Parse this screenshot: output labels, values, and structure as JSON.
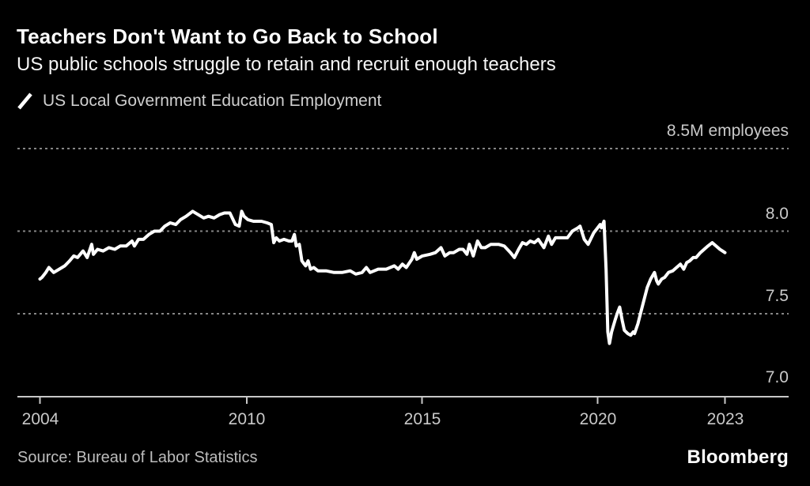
{
  "header": {
    "title": "Teachers Don't Want to Go Back to School",
    "subtitle": "US public schools struggle to retain and recruit enough teachers"
  },
  "legend": {
    "label": "US Local Government Education Employment"
  },
  "footer": {
    "source": "Source: Bureau of Labor Statistics",
    "brand": "Bloomberg"
  },
  "colors": {
    "background": "#000000",
    "line": "#ffffff",
    "grid": "#868686",
    "axis": "#c8c8c8",
    "label": "#c9c9c9"
  },
  "chart_data": {
    "type": "line",
    "title": "Teachers Don't Want to Go Back to School",
    "subtitle": "US public schools struggle to retain and recruit enough teachers",
    "series_name": "US Local Government Education Employment",
    "ylabel": "employees (millions)",
    "grid": "dashed horizontal",
    "legend_position": "top-left",
    "y_axis": {
      "range": [
        7.0,
        8.5
      ],
      "gridlines_at": [
        8.5,
        8.0,
        7.5
      ],
      "ticks": [
        {
          "value": 8.5,
          "label": "8.5M employees"
        },
        {
          "value": 8.0,
          "label": "8.0"
        },
        {
          "value": 7.5,
          "label": "7.5"
        },
        {
          "value": 7.0,
          "label": "7.0"
        }
      ]
    },
    "x_axis": {
      "range": [
        2004,
        2023
      ],
      "ticks": [
        {
          "year": 2004,
          "label": "2004"
        },
        {
          "year": 2010,
          "label": "2010"
        },
        {
          "year": 2015,
          "label": "2015"
        },
        {
          "year": 2020,
          "label": "2020"
        },
        {
          "year": 2023,
          "label": "2023"
        }
      ]
    },
    "points": [
      [
        2004.0,
        7.71
      ],
      [
        2004.06,
        7.72
      ],
      [
        2004.17,
        7.75
      ],
      [
        2004.26,
        7.78
      ],
      [
        2004.4,
        7.75
      ],
      [
        2004.56,
        7.77
      ],
      [
        2004.72,
        7.79
      ],
      [
        2004.86,
        7.82
      ],
      [
        2004.98,
        7.85
      ],
      [
        2005.09,
        7.84
      ],
      [
        2005.25,
        7.88
      ],
      [
        2005.37,
        7.84
      ],
      [
        2005.5,
        7.92
      ],
      [
        2005.55,
        7.86
      ],
      [
        2005.67,
        7.89
      ],
      [
        2005.83,
        7.88
      ],
      [
        2006.0,
        7.9
      ],
      [
        2006.17,
        7.89
      ],
      [
        2006.33,
        7.91
      ],
      [
        2006.5,
        7.91
      ],
      [
        2006.67,
        7.94
      ],
      [
        2006.74,
        7.91
      ],
      [
        2006.86,
        7.95
      ],
      [
        2007.0,
        7.95
      ],
      [
        2007.16,
        7.98
      ],
      [
        2007.32,
        8.0
      ],
      [
        2007.48,
        8.0
      ],
      [
        2007.62,
        8.03
      ],
      [
        2007.78,
        8.05
      ],
      [
        2007.94,
        8.04
      ],
      [
        2008.08,
        8.07
      ],
      [
        2008.24,
        8.09
      ],
      [
        2008.43,
        8.12
      ],
      [
        2008.59,
        8.1
      ],
      [
        2008.75,
        8.08
      ],
      [
        2008.89,
        8.09
      ],
      [
        2009.05,
        8.08
      ],
      [
        2009.21,
        8.1
      ],
      [
        2009.35,
        8.11
      ],
      [
        2009.51,
        8.11
      ],
      [
        2009.67,
        8.04
      ],
      [
        2009.78,
        8.03
      ],
      [
        2009.85,
        8.12
      ],
      [
        2009.92,
        8.09
      ],
      [
        2010.03,
        8.07
      ],
      [
        2010.19,
        8.06
      ],
      [
        2010.42,
        8.06
      ],
      [
        2010.58,
        8.05
      ],
      [
        2010.7,
        8.04
      ],
      [
        2010.77,
        7.93
      ],
      [
        2010.84,
        7.96
      ],
      [
        2010.93,
        7.94
      ],
      [
        2011.06,
        7.95
      ],
      [
        2011.2,
        7.94
      ],
      [
        2011.29,
        7.94
      ],
      [
        2011.36,
        7.98
      ],
      [
        2011.41,
        7.91
      ],
      [
        2011.5,
        7.92
      ],
      [
        2011.57,
        7.82
      ],
      [
        2011.68,
        7.79
      ],
      [
        2011.75,
        7.82
      ],
      [
        2011.82,
        7.77
      ],
      [
        2011.91,
        7.78
      ],
      [
        2012.03,
        7.76
      ],
      [
        2012.26,
        7.76
      ],
      [
        2012.49,
        7.75
      ],
      [
        2012.72,
        7.75
      ],
      [
        2012.95,
        7.76
      ],
      [
        2013.11,
        7.74
      ],
      [
        2013.29,
        7.75
      ],
      [
        2013.41,
        7.78
      ],
      [
        2013.52,
        7.75
      ],
      [
        2013.75,
        7.77
      ],
      [
        2013.98,
        7.77
      ],
      [
        2014.21,
        7.79
      ],
      [
        2014.32,
        7.77
      ],
      [
        2014.44,
        7.8
      ],
      [
        2014.55,
        7.78
      ],
      [
        2014.71,
        7.83
      ],
      [
        2014.78,
        7.87
      ],
      [
        2014.85,
        7.83
      ],
      [
        2015.01,
        7.85
      ],
      [
        2015.23,
        7.86
      ],
      [
        2015.38,
        7.87
      ],
      [
        2015.54,
        7.9
      ],
      [
        2015.65,
        7.85
      ],
      [
        2015.79,
        7.87
      ],
      [
        2015.9,
        7.87
      ],
      [
        2016.06,
        7.89
      ],
      [
        2016.17,
        7.89
      ],
      [
        2016.28,
        7.86
      ],
      [
        2016.35,
        7.92
      ],
      [
        2016.46,
        7.85
      ],
      [
        2016.58,
        7.94
      ],
      [
        2016.69,
        7.9
      ],
      [
        2016.8,
        7.9
      ],
      [
        2016.96,
        7.92
      ],
      [
        2017.18,
        7.92
      ],
      [
        2017.34,
        7.91
      ],
      [
        2017.52,
        7.87
      ],
      [
        2017.63,
        7.84
      ],
      [
        2017.75,
        7.89
      ],
      [
        2017.86,
        7.93
      ],
      [
        2017.97,
        7.92
      ],
      [
        2018.08,
        7.94
      ],
      [
        2018.2,
        7.93
      ],
      [
        2018.31,
        7.95
      ],
      [
        2018.47,
        7.9
      ],
      [
        2018.6,
        7.97
      ],
      [
        2018.69,
        7.92
      ],
      [
        2018.8,
        7.96
      ],
      [
        2018.98,
        7.96
      ],
      [
        2019.14,
        7.96
      ],
      [
        2019.28,
        8.0
      ],
      [
        2019.44,
        8.02
      ],
      [
        2019.5,
        8.03
      ],
      [
        2019.62,
        7.95
      ],
      [
        2019.73,
        7.92
      ],
      [
        2019.89,
        7.99
      ],
      [
        2020.0,
        8.02
      ],
      [
        2020.06,
        8.04
      ],
      [
        2020.09,
        8.02
      ],
      [
        2020.15,
        8.06
      ],
      [
        2020.2,
        7.77
      ],
      [
        2020.24,
        7.39
      ],
      [
        2020.28,
        7.32
      ],
      [
        2020.33,
        7.39
      ],
      [
        2020.41,
        7.46
      ],
      [
        2020.46,
        7.5
      ],
      [
        2020.52,
        7.54
      ],
      [
        2020.58,
        7.46
      ],
      [
        2020.63,
        7.4
      ],
      [
        2020.71,
        7.38
      ],
      [
        2020.78,
        7.37
      ],
      [
        2020.84,
        7.39
      ],
      [
        2020.87,
        7.38
      ],
      [
        2020.95,
        7.44
      ],
      [
        2021.02,
        7.51
      ],
      [
        2021.1,
        7.59
      ],
      [
        2021.17,
        7.66
      ],
      [
        2021.25,
        7.71
      ],
      [
        2021.34,
        7.75
      ],
      [
        2021.39,
        7.7
      ],
      [
        2021.43,
        7.68
      ],
      [
        2021.51,
        7.71
      ],
      [
        2021.58,
        7.72
      ],
      [
        2021.67,
        7.75
      ],
      [
        2021.77,
        7.76
      ],
      [
        2021.86,
        7.78
      ],
      [
        2021.95,
        7.8
      ],
      [
        2022.03,
        7.77
      ],
      [
        2022.1,
        7.81
      ],
      [
        2022.17,
        7.82
      ],
      [
        2022.25,
        7.84
      ],
      [
        2022.32,
        7.84
      ],
      [
        2022.42,
        7.87
      ],
      [
        2022.51,
        7.89
      ],
      [
        2022.6,
        7.91
      ],
      [
        2022.7,
        7.93
      ],
      [
        2022.79,
        7.91
      ],
      [
        2022.88,
        7.89
      ],
      [
        2022.94,
        7.88
      ],
      [
        2023.0,
        7.87
      ]
    ]
  }
}
